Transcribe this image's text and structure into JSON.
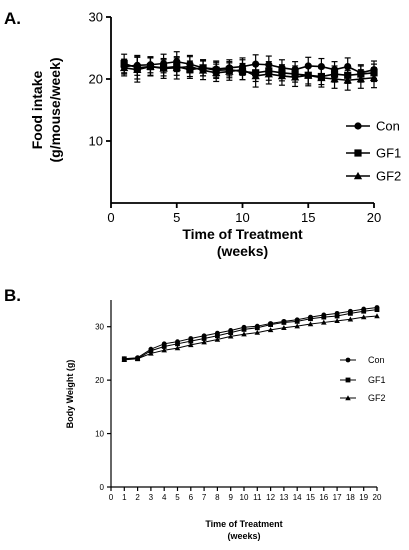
{
  "chart_data": [
    {
      "panel_label": "A.",
      "type": "line",
      "xlabel_line1": "Time of Treatment",
      "xlabel_line2": "(weeks)",
      "ylabel_line1": "Food intake",
      "ylabel_line2": "(g/mouse/week)",
      "xlim": [
        0,
        20
      ],
      "ylim": [
        0,
        30
      ],
      "xticks": [
        0,
        5,
        10,
        15,
        20
      ],
      "yticks": [
        10,
        20,
        30
      ],
      "grid": false,
      "legend_position": "right",
      "error_bars": true,
      "x": [
        1,
        2,
        3,
        4,
        5,
        6,
        7,
        8,
        9,
        10,
        11,
        12,
        13,
        14,
        15,
        16,
        17,
        18,
        19,
        20
      ],
      "series": [
        {
          "name": "Con",
          "marker": "circle",
          "values": [
            22.0,
            22.2,
            22.3,
            22.5,
            22.8,
            22.4,
            21.8,
            21.6,
            21.8,
            22.0,
            22.4,
            22.3,
            21.8,
            21.5,
            22.1,
            22.0,
            21.5,
            22.0,
            21.0,
            21.5
          ],
          "errors": [
            1.2,
            1.6,
            1.3,
            1.5,
            1.6,
            1.4,
            1.3,
            1.3,
            1.3,
            1.4,
            1.5,
            1.4,
            1.3,
            1.3,
            1.4,
            1.3,
            1.3,
            1.4,
            1.3,
            1.4
          ]
        },
        {
          "name": "GF1",
          "marker": "square",
          "values": [
            22.5,
            21.8,
            22.0,
            21.8,
            22.0,
            21.5,
            21.8,
            21.4,
            21.5,
            21.2,
            21.0,
            21.3,
            21.0,
            20.8,
            20.6,
            20.4,
            20.8,
            20.6,
            20.8,
            21.0
          ],
          "errors": [
            1.5,
            1.8,
            1.4,
            1.3,
            1.4,
            1.4,
            1.3,
            1.3,
            1.3,
            1.3,
            1.4,
            1.5,
            1.3,
            1.3,
            1.4,
            1.3,
            1.3,
            1.3,
            1.3,
            1.4
          ]
        },
        {
          "name": "GF2",
          "marker": "triangle",
          "values": [
            21.8,
            21.5,
            22.0,
            21.7,
            21.8,
            22.0,
            21.4,
            21.0,
            21.2,
            21.5,
            20.5,
            20.8,
            20.5,
            20.3,
            20.6,
            20.2,
            20.0,
            19.8,
            20.0,
            20.2
          ],
          "errors": [
            1.3,
            2.0,
            1.5,
            1.6,
            1.8,
            1.6,
            1.5,
            1.4,
            1.4,
            1.6,
            1.8,
            1.6,
            1.5,
            1.5,
            1.7,
            1.5,
            1.5,
            1.6,
            1.5,
            1.6
          ]
        }
      ]
    },
    {
      "panel_label": "B.",
      "type": "line",
      "xlabel_line1": "Time of Treatment",
      "xlabel_line2": "(weeks)",
      "ylabel": "Body Weight (g)",
      "xlim": [
        0,
        20
      ],
      "ylim": [
        0,
        35
      ],
      "xticks": [
        0,
        1,
        2,
        3,
        4,
        5,
        6,
        7,
        8,
        9,
        10,
        11,
        12,
        13,
        14,
        15,
        16,
        17,
        18,
        19,
        20
      ],
      "yticks": [
        0,
        10,
        20,
        30
      ],
      "grid": false,
      "legend_position": "right",
      "error_bars": false,
      "x": [
        1,
        2,
        3,
        4,
        5,
        6,
        7,
        8,
        9,
        10,
        11,
        12,
        13,
        14,
        15,
        16,
        17,
        18,
        19,
        20
      ],
      "series": [
        {
          "name": "Con",
          "marker": "circle",
          "values": [
            24.0,
            24.2,
            25.8,
            26.8,
            27.2,
            27.8,
            28.3,
            28.8,
            29.3,
            29.9,
            30.1,
            30.6,
            31.0,
            31.3,
            31.8,
            32.2,
            32.5,
            32.9,
            33.3,
            33.6
          ]
        },
        {
          "name": "GF1",
          "marker": "square",
          "values": [
            24.0,
            24.0,
            25.5,
            26.3,
            26.8,
            27.3,
            27.8,
            28.3,
            28.9,
            29.5,
            29.8,
            30.4,
            30.8,
            31.0,
            31.5,
            31.8,
            32.0,
            32.5,
            32.9,
            33.2
          ]
        },
        {
          "name": "GF2",
          "marker": "triangle",
          "values": [
            23.8,
            24.0,
            25.0,
            25.6,
            26.0,
            26.6,
            27.1,
            27.6,
            28.2,
            28.6,
            28.9,
            29.4,
            29.8,
            30.1,
            30.5,
            30.8,
            31.1,
            31.4,
            31.8,
            32.0
          ]
        }
      ]
    }
  ]
}
